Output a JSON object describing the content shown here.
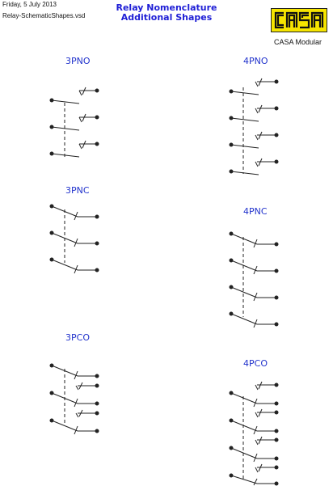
{
  "header": {
    "date": "Friday, 5 July 2013",
    "filename": "Relay-SchematicShapes.vsd",
    "title_line1": "Relay Nomenclature",
    "title_line2": "Additional Shapes"
  },
  "logo": {
    "text": "CASA",
    "subtitle": "CASA Modular",
    "bg_color": "#f5e400"
  },
  "sections": [
    {
      "label": "3PNO"
    },
    {
      "label": "4PNO"
    },
    {
      "label": "3PNC"
    },
    {
      "label": "4PNC"
    },
    {
      "label": "3PCO"
    },
    {
      "label": "4PCO"
    }
  ],
  "colors": {
    "label": "#2233cc",
    "title": "#1e1ed6",
    "line": "#222222"
  }
}
